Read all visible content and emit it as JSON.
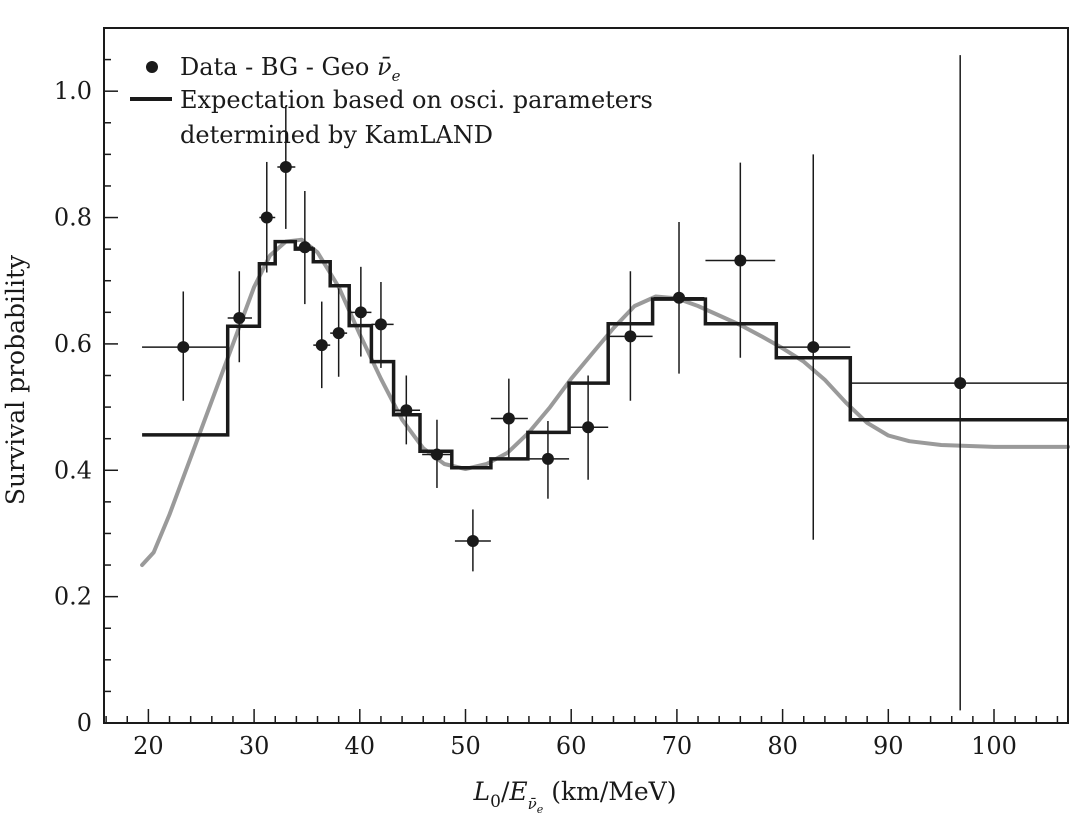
{
  "chart_data": {
    "type": "scatter",
    "xlabel": "L0/E (km/MeV)",
    "ylabel": "Survival probability",
    "xlim": [
      15.8,
      107
    ],
    "ylim": [
      0,
      1.1
    ],
    "x_ticks": [
      20,
      30,
      40,
      50,
      60,
      70,
      80,
      90,
      100
    ],
    "y_ticks": [
      0,
      0.2,
      0.4,
      0.6,
      0.8,
      1.0
    ],
    "y_tick_labels": [
      "0",
      "0.2",
      "0.4",
      "0.6",
      "0.8",
      "1.0"
    ],
    "grid": false,
    "legend_position": "top-left",
    "legend": {
      "data_label": "Data - BG - Geo",
      "data_symbol": "ν̄",
      "data_subscript": "e",
      "model_line1": "Expectation based on osci. parameters",
      "model_line2": "determined by KamLAND"
    },
    "series": [
      {
        "name": "Data - BG - Geo ν̄e",
        "kind": "points",
        "color": "#1a1a1a",
        "points": [
          {
            "x": 23.3,
            "y": 0.595,
            "xlo": 19.4,
            "xhi": 27.5,
            "ylo": 0.51,
            "yhi": 0.683
          },
          {
            "x": 28.6,
            "y": 0.641,
            "xlo": 27.5,
            "xhi": 29.8,
            "ylo": 0.571,
            "yhi": 0.715
          },
          {
            "x": 31.2,
            "y": 0.8,
            "xlo": 30.5,
            "xhi": 32.0,
            "ylo": 0.713,
            "yhi": 0.888
          },
          {
            "x": 33.0,
            "y": 0.88,
            "xlo": 32.2,
            "xhi": 33.9,
            "ylo": 0.782,
            "yhi": 0.977
          },
          {
            "x": 34.8,
            "y": 0.753,
            "xlo": 34.0,
            "xhi": 35.6,
            "ylo": 0.663,
            "yhi": 0.842
          },
          {
            "x": 36.4,
            "y": 0.598,
            "xlo": 35.6,
            "xhi": 37.2,
            "ylo": 0.53,
            "yhi": 0.667
          },
          {
            "x": 38.0,
            "y": 0.617,
            "xlo": 37.2,
            "xhi": 38.8,
            "ylo": 0.548,
            "yhi": 0.688
          },
          {
            "x": 40.1,
            "y": 0.65,
            "xlo": 39.1,
            "xhi": 41.1,
            "ylo": 0.58,
            "yhi": 0.722
          },
          {
            "x": 42.0,
            "y": 0.631,
            "xlo": 41.1,
            "xhi": 43.2,
            "ylo": 0.562,
            "yhi": 0.698
          },
          {
            "x": 44.4,
            "y": 0.495,
            "xlo": 43.3,
            "xhi": 45.7,
            "ylo": 0.441,
            "yhi": 0.55
          },
          {
            "x": 47.3,
            "y": 0.425,
            "xlo": 45.9,
            "xhi": 48.7,
            "ylo": 0.372,
            "yhi": 0.48
          },
          {
            "x": 50.7,
            "y": 0.288,
            "xlo": 49.0,
            "xhi": 52.4,
            "ylo": 0.24,
            "yhi": 0.338
          },
          {
            "x": 54.1,
            "y": 0.482,
            "xlo": 52.4,
            "xhi": 55.9,
            "ylo": 0.42,
            "yhi": 0.545
          },
          {
            "x": 57.8,
            "y": 0.418,
            "xlo": 55.9,
            "xhi": 59.8,
            "ylo": 0.355,
            "yhi": 0.478
          },
          {
            "x": 61.6,
            "y": 0.468,
            "xlo": 59.8,
            "xhi": 63.5,
            "ylo": 0.385,
            "yhi": 0.55
          },
          {
            "x": 65.6,
            "y": 0.612,
            "xlo": 63.5,
            "xhi": 67.7,
            "ylo": 0.51,
            "yhi": 0.715
          },
          {
            "x": 70.2,
            "y": 0.673,
            "xlo": 67.8,
            "xhi": 72.6,
            "ylo": 0.553,
            "yhi": 0.793
          },
          {
            "x": 76.0,
            "y": 0.732,
            "xlo": 72.7,
            "xhi": 79.3,
            "ylo": 0.578,
            "yhi": 0.887
          },
          {
            "x": 82.9,
            "y": 0.595,
            "xlo": 79.4,
            "xhi": 86.4,
            "ylo": 0.29,
            "yhi": 0.9
          },
          {
            "x": 96.8,
            "y": 0.538,
            "xlo": 86.4,
            "xhi": 107.0,
            "ylo": 0.02,
            "yhi": 1.057
          }
        ]
      },
      {
        "name": "Expectation based on osci. parameters determined by KamLAND",
        "kind": "step",
        "color": "#1a1a1a",
        "steps": [
          {
            "x0": 19.4,
            "x1": 27.5,
            "y": 0.456
          },
          {
            "x0": 27.5,
            "x1": 30.5,
            "y": 0.628
          },
          {
            "x0": 30.5,
            "x1": 32.0,
            "y": 0.727
          },
          {
            "x0": 32.0,
            "x1": 33.9,
            "y": 0.762
          },
          {
            "x0": 33.9,
            "x1": 35.6,
            "y": 0.75
          },
          {
            "x0": 35.6,
            "x1": 37.2,
            "y": 0.73
          },
          {
            "x0": 37.2,
            "x1": 39.0,
            "y": 0.692
          },
          {
            "x0": 39.0,
            "x1": 41.1,
            "y": 0.629
          },
          {
            "x0": 41.1,
            "x1": 43.2,
            "y": 0.572
          },
          {
            "x0": 43.2,
            "x1": 45.7,
            "y": 0.488
          },
          {
            "x0": 45.7,
            "x1": 48.7,
            "y": 0.43
          },
          {
            "x0": 48.7,
            "x1": 52.4,
            "y": 0.404
          },
          {
            "x0": 52.4,
            "x1": 55.9,
            "y": 0.418
          },
          {
            "x0": 55.9,
            "x1": 59.8,
            "y": 0.46
          },
          {
            "x0": 59.8,
            "x1": 63.5,
            "y": 0.538
          },
          {
            "x0": 63.5,
            "x1": 67.7,
            "y": 0.632
          },
          {
            "x0": 67.7,
            "x1": 72.7,
            "y": 0.671
          },
          {
            "x0": 72.7,
            "x1": 79.4,
            "y": 0.632
          },
          {
            "x0": 79.4,
            "x1": 86.4,
            "y": 0.578
          },
          {
            "x0": 86.4,
            "x1": 107.0,
            "y": 0.48
          }
        ]
      },
      {
        "name": "",
        "kind": "curve",
        "color": "#9a9a9a",
        "points": [
          [
            19.4,
            0.25
          ],
          [
            20.5,
            0.27
          ],
          [
            22,
            0.33
          ],
          [
            24,
            0.42
          ],
          [
            26,
            0.51
          ],
          [
            28,
            0.6
          ],
          [
            30,
            0.69
          ],
          [
            31.5,
            0.74
          ],
          [
            33,
            0.762
          ],
          [
            34.5,
            0.765
          ],
          [
            36,
            0.745
          ],
          [
            38,
            0.69
          ],
          [
            40,
            0.615
          ],
          [
            42,
            0.545
          ],
          [
            44,
            0.48
          ],
          [
            46,
            0.435
          ],
          [
            48,
            0.41
          ],
          [
            50,
            0.402
          ],
          [
            52,
            0.41
          ],
          [
            54,
            0.428
          ],
          [
            56,
            0.46
          ],
          [
            58,
            0.5
          ],
          [
            60,
            0.545
          ],
          [
            62,
            0.585
          ],
          [
            64,
            0.625
          ],
          [
            66,
            0.66
          ],
          [
            68,
            0.675
          ],
          [
            70,
            0.672
          ],
          [
            72,
            0.66
          ],
          [
            74,
            0.645
          ],
          [
            76,
            0.63
          ],
          [
            78,
            0.612
          ],
          [
            80,
            0.593
          ],
          [
            82,
            0.572
          ],
          [
            84,
            0.543
          ],
          [
            86,
            0.507
          ],
          [
            88,
            0.475
          ],
          [
            90,
            0.455
          ],
          [
            92,
            0.446
          ],
          [
            95,
            0.44
          ],
          [
            100,
            0.437
          ],
          [
            107,
            0.437
          ]
        ]
      }
    ]
  }
}
